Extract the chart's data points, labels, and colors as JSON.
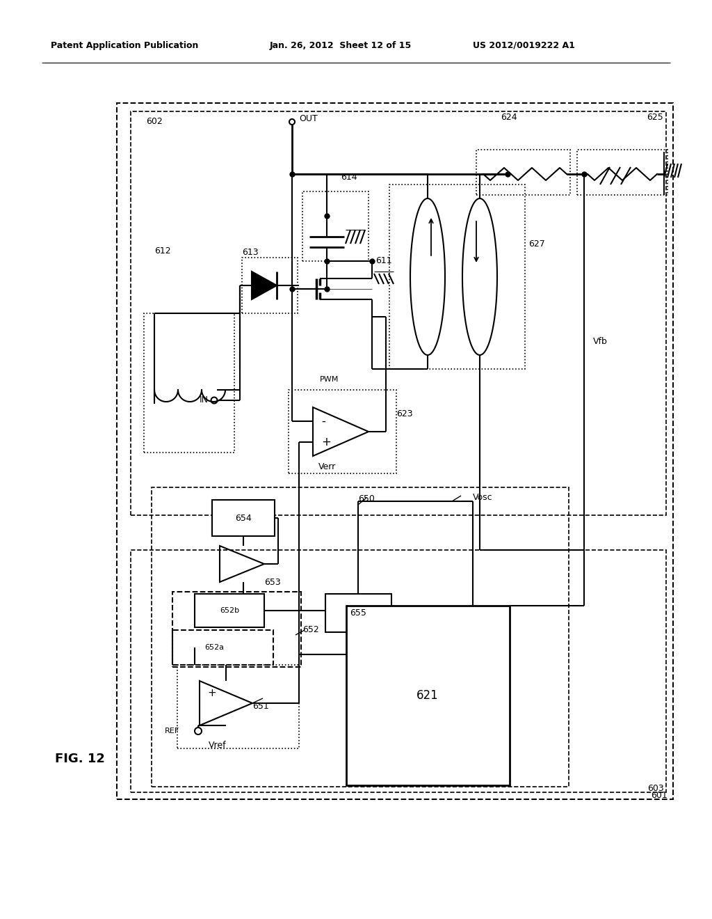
{
  "title_left": "Patent Application Publication",
  "title_mid": "Jan. 26, 2012  Sheet 12 of 15",
  "title_right": "US 2012/0019222 A1",
  "fig_label": "FIG. 12",
  "bg_color": "#ffffff"
}
